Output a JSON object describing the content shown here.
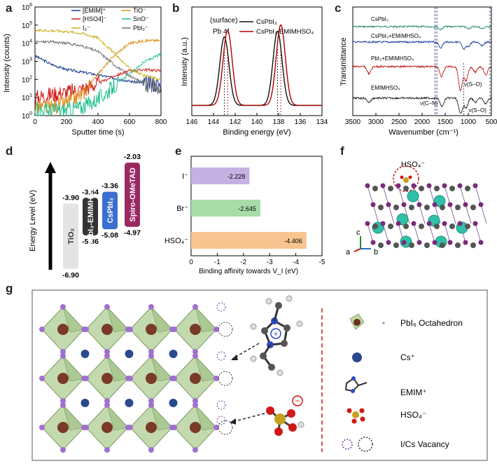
{
  "panels": {
    "a": "a",
    "b": "b",
    "c": "c",
    "d": "d",
    "e": "e",
    "f": "f",
    "g": "g"
  },
  "chart_data": [
    {
      "id": "a",
      "type": "line",
      "xlabel": "Sputter time (s)",
      "ylabel": "Intensity (counts)",
      "xlim": [
        0,
        800
      ],
      "ylim": [
        1,
        1000000
      ],
      "yscale": "log",
      "x_ticks": [
        "0",
        "200",
        "400",
        "600",
        "800"
      ],
      "y_ticks": [
        "10^0",
        "10^1",
        "10^2",
        "10^3",
        "10^4",
        "10^5",
        "10^6"
      ],
      "legend": [
        "[EMIM]⁺",
        "TiO⁻",
        "[HSO4]⁻",
        "SnO⁻",
        "I₂⁻",
        "PbI₂⁻"
      ],
      "series": [
        {
          "name": "[EMIM]⁺",
          "color": "#1a3a8a",
          "points": [
            [
              0,
              2000
            ],
            [
              100,
              700
            ],
            [
              200,
              350
            ],
            [
              300,
              250
            ],
            [
              400,
              180
            ],
            [
              500,
              120
            ],
            [
              600,
              80
            ],
            [
              700,
              60
            ],
            [
              800,
              50
            ]
          ]
        },
        {
          "name": "[HSO4]⁻",
          "color": "#d21a1a",
          "points": [
            [
              0,
              10
            ],
            [
              100,
              15
            ],
            [
              200,
              20
            ],
            [
              300,
              30
            ],
            [
              400,
              60
            ],
            [
              500,
              150
            ],
            [
              600,
              300
            ],
            [
              700,
              350
            ],
            [
              800,
              300
            ]
          ]
        },
        {
          "name": "TiO⁻",
          "color": "#e09020",
          "points": [
            [
              0,
              3
            ],
            [
              100,
              3
            ],
            [
              200,
              5
            ],
            [
              300,
              15
            ],
            [
              400,
              200
            ],
            [
              500,
              2000
            ],
            [
              600,
              10000
            ],
            [
              700,
              14000
            ],
            [
              800,
              14000
            ]
          ]
        },
        {
          "name": "SnO⁻",
          "color": "#20c090",
          "points": [
            [
              0,
              2
            ],
            [
              100,
              2
            ],
            [
              200,
              2
            ],
            [
              300,
              3
            ],
            [
              400,
              8
            ],
            [
              500,
              40
            ],
            [
              600,
              200
            ],
            [
              700,
              1000
            ],
            [
              800,
              2500
            ]
          ]
        },
        {
          "name": "I₂⁻",
          "color": "#c8b020",
          "points": [
            [
              0,
              50000
            ],
            [
              100,
              50000
            ],
            [
              200,
              45000
            ],
            [
              300,
              35000
            ],
            [
              400,
              20000
            ],
            [
              500,
              3000
            ],
            [
              600,
              400
            ],
            [
              700,
              150
            ],
            [
              800,
              100
            ]
          ]
        },
        {
          "name": "PbI₂⁻",
          "color": "#707070",
          "points": [
            [
              0,
              12000
            ],
            [
              100,
              12000
            ],
            [
              200,
              10000
            ],
            [
              300,
              7000
            ],
            [
              400,
              3500
            ],
            [
              500,
              700
            ],
            [
              600,
              150
            ],
            [
              700,
              60
            ],
            [
              800,
              30
            ]
          ]
        }
      ]
    },
    {
      "id": "b",
      "type": "line",
      "title": "(surface)",
      "subtitle": "Pb 4f",
      "xlabel": "Binding energy (eV)",
      "ylabel": "Intensity (a.u.)",
      "xlim": [
        146,
        134
      ],
      "x_ticks": [
        "146",
        "144",
        "142",
        "140",
        "138",
        "136",
        "134"
      ],
      "legend": [
        "CsPbI₃",
        "CsPbI₃-EMIMHSO₄"
      ],
      "series": [
        {
          "name": "CsPbI₃",
          "color": "#111111",
          "peaks": [
            [
              143.0,
              0.85
            ],
            [
              138.1,
              0.92
            ]
          ]
        },
        {
          "name": "CsPbI₃-EMIMHSO₄",
          "color": "#b00000",
          "peaks": [
            [
              142.7,
              0.93
            ],
            [
              137.8,
              1.0
            ]
          ]
        }
      ]
    },
    {
      "id": "c",
      "type": "line",
      "xlabel": "Wavenumber (cm⁻¹)",
      "ylabel": "Transmittance",
      "xlim": [
        3500,
        500
      ],
      "x_ticks": [
        "3500",
        "3000",
        "2500",
        "2000",
        "1500",
        "1000",
        "500"
      ],
      "series": [
        {
          "name": "CsPbI₃",
          "color": "#2a9070"
        },
        {
          "name": "CsPbI₃+EMIMHSO₄",
          "color": "#1a3a9a"
        },
        {
          "name": "PbI₂+EMIMHSO₄",
          "color": "#c01818"
        },
        {
          "name": "EMIMHSO₄",
          "color": "#222222"
        }
      ],
      "annotations": [
        "ν(C–N)",
        "ν(S–O)",
        "ν(S–O)"
      ]
    },
    {
      "id": "d",
      "type": "bar",
      "ylabel": "Energy Level (eV)",
      "categories": [
        "TiO₂",
        "CsPbI₃-EMIMHSO₄",
        "CsPbI₃",
        "Spiro-OMeTAD"
      ],
      "cb_values": [
        -3.9,
        -3.64,
        -3.36,
        -2.03
      ],
      "vb_values": [
        -6.9,
        -5.36,
        -5.08,
        -4.97
      ],
      "cb_labels": [
        "-3.90",
        "-3.64",
        "-3.36",
        "-2.03"
      ],
      "vb_labels": [
        "-6.90",
        "-5.36",
        "-5.08",
        "-4.97"
      ],
      "colors": [
        "#e4e4e4",
        "#333333",
        "#3a6fd0",
        "#9a2860"
      ]
    },
    {
      "id": "e",
      "type": "bar",
      "xlabel": "Binding affinity towards V_I (eV)",
      "categories": [
        "I⁻",
        "Br⁻",
        "HSO₄⁻"
      ],
      "values": [
        -2.228,
        -2.645,
        -4.406
      ],
      "value_labels": [
        "-2.228",
        "-2.645",
        "-4.406"
      ],
      "xlim": [
        0,
        -5
      ],
      "x_ticks": [
        "0",
        "-1",
        "-2",
        "-3",
        "-4",
        "-5"
      ],
      "colors": [
        "#c6b2e2",
        "#a8dca8",
        "#f8c490"
      ]
    }
  ],
  "f": {
    "label": "HSO₄⁻",
    "axes": [
      "c",
      "a",
      "b"
    ]
  },
  "g": {
    "legend": [
      "PbI₆ Octahedron",
      "Cs⁺",
      "EMIM⁺",
      "HSO₄⁻",
      "I/Cs Vacancy"
    ],
    "plus": "+",
    "minus": "−"
  }
}
